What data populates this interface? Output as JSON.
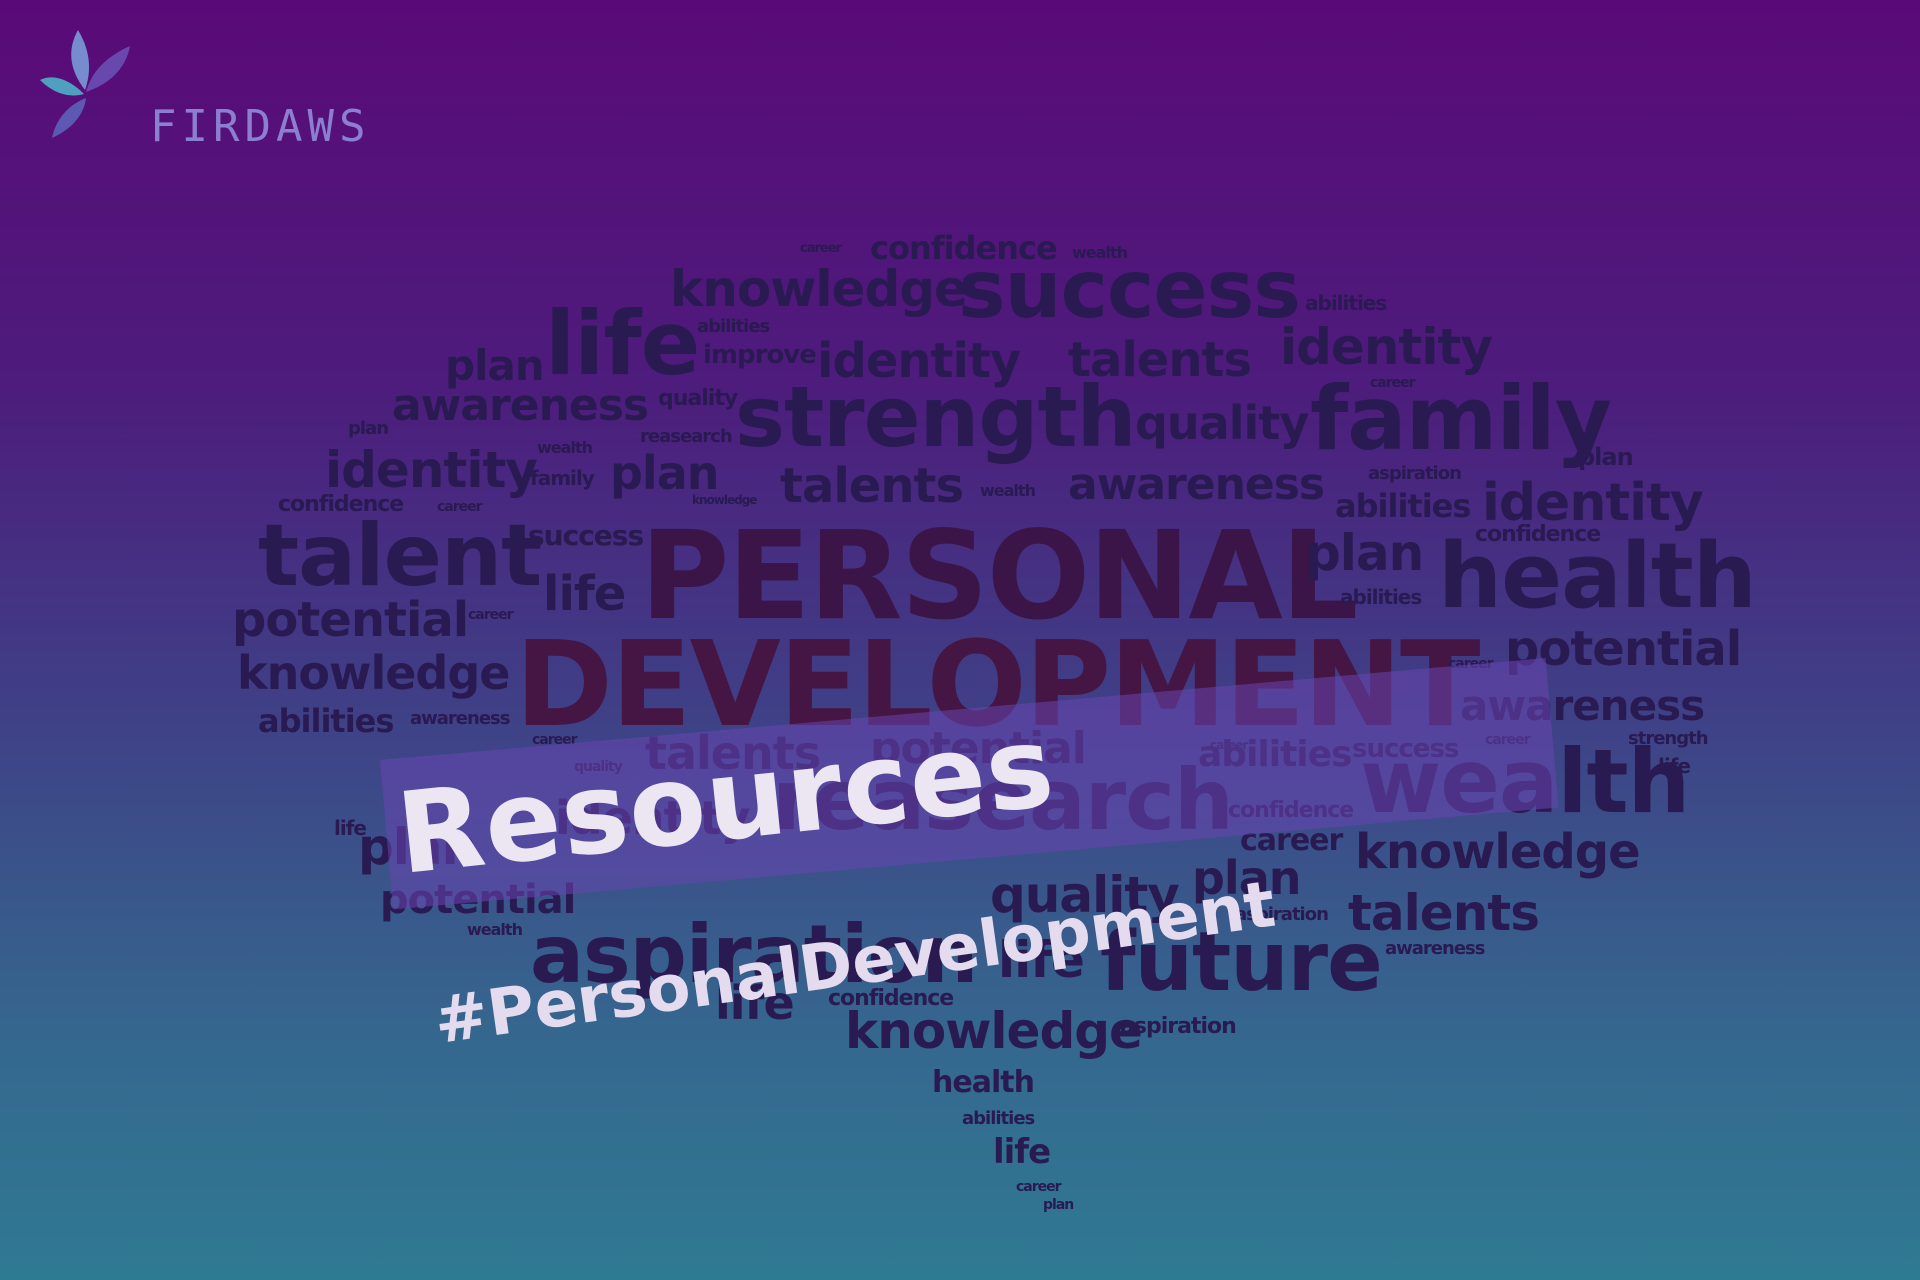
{
  "brand": {
    "name": "FIRDAWS",
    "logo_icon": "leaf-petals-icon",
    "color": "#8b7fd0"
  },
  "title": "Resources",
  "hashtag": "#PersonalDevelopment",
  "word_cloud": {
    "headline": [
      "PERSONAL",
      "DEVELOPMENT"
    ],
    "words": [
      "confidence",
      "wealth",
      "career",
      "knowledge",
      "success",
      "abilities",
      "life",
      "abilities",
      "improve",
      "identity",
      "talents",
      "identity",
      "plan",
      "awareness",
      "quality",
      "strength",
      "quality",
      "family",
      "career",
      "plan",
      "wealth",
      "reasearch",
      "plan",
      "identity",
      "family",
      "plan",
      "talents",
      "wealth",
      "awareness",
      "aspiration",
      "abilities",
      "identity",
      "confidence",
      "career",
      "knowledge",
      "talent",
      "success",
      "plan",
      "confidence",
      "health",
      "life",
      "potential",
      "career",
      "abilities",
      "knowledge",
      "career",
      "potential",
      "abilities",
      "awareness",
      "awareness",
      "career",
      "talents",
      "potential",
      "abilities",
      "success",
      "career",
      "strength",
      "career",
      "quality",
      "wealth",
      "life",
      "reasearch",
      "identity",
      "confidence",
      "plan",
      "career",
      "knowledge",
      "life",
      "quality",
      "plan",
      "potential",
      "aspiration",
      "talents",
      "wealth",
      "aspiration",
      "life",
      "future",
      "awareness",
      "life",
      "confidence",
      "knowledge",
      "aspiration",
      "health",
      "abilities",
      "life",
      "career",
      "plan"
    ]
  }
}
